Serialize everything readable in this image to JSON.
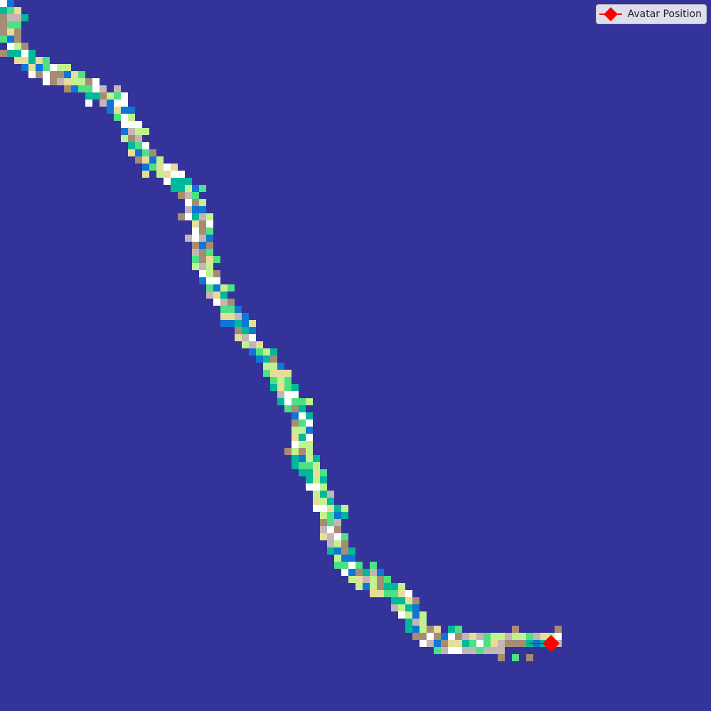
{
  "map": {
    "background_color": "#343399",
    "cell_palette": [
      "#a58c76",
      "#e6dd99",
      "#4be184",
      "#ffffff",
      "#c6b5b5",
      "#00b89a",
      "#0f76d6",
      "#c2f190"
    ],
    "avatar_color": "#ff0000",
    "avatar_icon": "diamond-marker-icon"
  },
  "legend": {
    "label": "Avatar Position",
    "marker_color": "#ff0000",
    "marker_icon": "red-diamond-icon"
  }
}
